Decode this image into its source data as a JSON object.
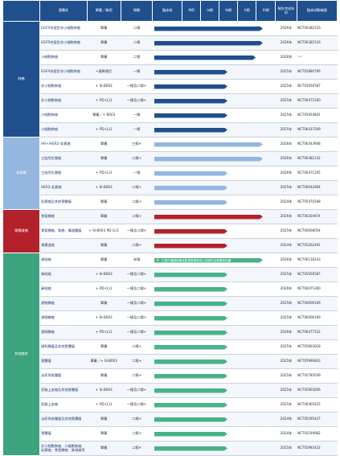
{
  "headers": [
    "適應症",
    "單藥／聯用",
    "線數",
    "臨床前",
    "IND",
    "Ia期",
    "Ib期",
    "II期",
    "III期",
    "預計完成年份",
    "臨床試驗編號"
  ],
  "categories": [
    {
      "key": "lung",
      "label": "肺癌",
      "color": "#1f4f8c"
    },
    {
      "key": "breast",
      "label": "乳腺癌",
      "color": "#93b7de"
    },
    {
      "key": "gi",
      "label": "胃腸道癌",
      "color": "#b3212a"
    },
    {
      "key": "other",
      "label": "其他癌症",
      "color": "#3ba37e"
    }
  ],
  "rows": [
    {
      "cat": "lung",
      "ind": "EGFR突變型非小細胞肺癌",
      "reg": "單藥",
      "line": "二線",
      "phase": 5.0,
      "year": "2026年",
      "nct": "NCT06382116"
    },
    {
      "cat": "lung",
      "ind": "EGFR突變型非小細胞肺癌",
      "reg": "單藥",
      "line": "二線",
      "phase": 5.0,
      "year": "2026年",
      "nct": "NCT06382116"
    },
    {
      "cat": "lung",
      "ind": "小細胞肺癌",
      "reg": "單藥",
      "line": "二線",
      "phase": 4.6,
      "year": "2026年",
      "nct": "—¹"
    },
    {
      "cat": "lung",
      "ind": "EGFR突變型非小細胞肺癌",
      "reg": "+奧希替尼",
      "line": "一線",
      "phase": 3.0,
      "year": "2025年",
      "nct": "NCT05880706"
    },
    {
      "cat": "lung",
      "ind": "非小細胞肺癌",
      "reg": "+ SI-B003",
      "line": "一線及二線+",
      "phase": 3.0,
      "year": "2025年",
      "nct": "NCT05956587"
    },
    {
      "cat": "lung",
      "ind": "非小細胞肺癌",
      "reg": "+ PD-(L)1",
      "line": "一線及二線+",
      "phase": 3.0,
      "year": "2025年",
      "nct": "NCT06475300"
    },
    {
      "cat": "lung",
      "ind": "小細胞肺癌",
      "reg": "單藥／+ B003",
      "line": "一線",
      "phase": 3.0,
      "year": "2025年",
      "nct": "NCT05924841"
    },
    {
      "cat": "lung",
      "ind": "小細胞肺癌",
      "reg": "+ PD-(L)1",
      "line": "一線",
      "phase": 3.0,
      "year": "2025年",
      "nct": "NCT06437509"
    },
    {
      "cat": "breast",
      "ind": "HR+/HER2-乳腺癌",
      "reg": "單藥",
      "line": "三線+",
      "phase": 5.0,
      "year": "2026年",
      "nct": "NCT06343948"
    },
    {
      "cat": "breast",
      "ind": "三陰性乳腺癌",
      "reg": "單藥",
      "line": "二線+",
      "phase": 5.0,
      "year": "2026年",
      "nct": "NCT06382142"
    },
    {
      "cat": "breast",
      "ind": "三陰性乳腺癌",
      "reg": "+ PD-(L)1",
      "line": "一線",
      "phase": 3.0,
      "year": "2026年",
      "nct": "NCT06471205"
    },
    {
      "cat": "breast",
      "ind": "HER2-乳腺癌",
      "reg": "+ SI-B003",
      "line": "二線+",
      "phase": 3.0,
      "year": "2025年",
      "nct": "NCT06042894"
    },
    {
      "cat": "breast",
      "ind": "乳腺癌及其他實體瘤",
      "reg": "單藥",
      "line": "二線+",
      "phase": 3.0,
      "year": "2024年",
      "nct": "NCT05470348"
    },
    {
      "cat": "gi",
      "ind": "食管鱗癌",
      "reg": "單藥",
      "line": "二線+",
      "phase": 5.0,
      "year": "2026年",
      "nct": "NCT06304974"
    },
    {
      "cat": "gi",
      "ind": "食管鱗癌、胃癌、腸道腫瘤",
      "reg": "+ SI-B003 PD-(L)1",
      "line": "一線及二線+",
      "phase": 3.0,
      "year": "2025年",
      "nct": "NCT06008054"
    },
    {
      "cat": "gi",
      "ind": "胃腸道癌",
      "reg": "單藥",
      "line": "二線+",
      "phase": 3.0,
      "year": "2024年",
      "nct": "NCT05262491"
    },
    {
      "cat": "other",
      "ind": "鼻咽癌",
      "reg": "單藥",
      "line": "末線",
      "phase": 5.0,
      "year": "2026年",
      "nct": "NCT06118333",
      "note": "已被中國國家藥品監督管理局納入突破性治療藥物品種",
      "star": true
    },
    {
      "cat": "other",
      "ind": "鼻咽癌",
      "reg": "+ SI-B003",
      "line": "一線及二線+",
      "phase": 3.0,
      "year": "2025年",
      "nct": "NCT05956587"
    },
    {
      "cat": "other",
      "ind": "鼻咽癌",
      "reg": "+ PD-(L)1",
      "line": "一線及二線+",
      "phase": 3.0,
      "year": "2026年",
      "nct": "NCT06475300"
    },
    {
      "cat": "other",
      "ind": "頭頸鱗癌",
      "reg": "單藥",
      "line": "一線及二線+",
      "phase": 3.0,
      "year": "2025年",
      "nct": "NCT06006169"
    },
    {
      "cat": "other",
      "ind": "頭頸鱗癌",
      "reg": "+ SI-B003",
      "line": "一線及二線+",
      "phase": 3.0,
      "year": "2025年",
      "nct": "NCT06006169"
    },
    {
      "cat": "other",
      "ind": "頭頸鱗癌",
      "reg": "+ PD-(L)1",
      "line": "一線及二線+",
      "phase": 3.0,
      "year": "2026年",
      "nct": "NCT06477522"
    },
    {
      "cat": "other",
      "ind": "婦科腫瘤及其他實體瘤",
      "reg": "單藥",
      "line": "二線+",
      "phase": 3.0,
      "year": "2025年",
      "nct": "NCT05803018"
    },
    {
      "cat": "other",
      "ind": "實體瘤",
      "reg": "單藥／+ SI-B003",
      "line": "二線+",
      "phase": 3.0,
      "year": "2025年",
      "nct": "NCT05990803"
    },
    {
      "cat": "other",
      "ind": "泌尿系統腫瘤",
      "reg": "單藥",
      "line": "二線+",
      "phase": 3.0,
      "year": "2025年",
      "nct": "NCT05785039"
    },
    {
      "cat": "other",
      "ind": "尿路上皮癌及其他實體瘤",
      "reg": "+ SI-B003",
      "line": "一線及二線+",
      "phase": 3.0,
      "year": "2025年",
      "nct": "NCT05965856"
    },
    {
      "cat": "other",
      "ind": "尿路上皮癌",
      "reg": "+ PD-(L)1",
      "line": "一線及二線+",
      "phase": 3.0,
      "year": "2025年",
      "nct": "NCT06405425"
    },
    {
      "cat": "other",
      "ind": "泌尿系統腫瘤及其他實體瘤",
      "reg": "單藥",
      "line": "二線+",
      "phase": 3.0,
      "year": "2024年",
      "nct": "NCT05595427"
    },
    {
      "cat": "other",
      "ind": "實體瘤",
      "reg": "單藥",
      "line": "二線+",
      "phase": 3.0,
      "year": "2024年",
      "nct": "NCT05194982"
    },
    {
      "cat": "other",
      "ind": "非小細胞肺癌、小細胞肺癌、乳腺癌、食管鱗癌、鼻咽癌等",
      "reg": "單藥",
      "line": "二線+",
      "phase": 3.0,
      "year": "2025年",
      "nct": "NCT05983432"
    }
  ]
}
